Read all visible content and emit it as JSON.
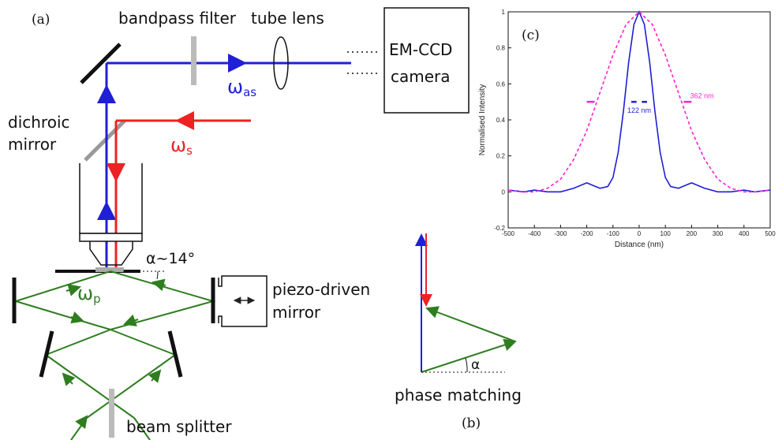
{
  "panels": {
    "a": "(a)",
    "b": "(b)",
    "c": "(c)"
  },
  "labels": {
    "bandpass_filter": "bandpass filter",
    "tube_lens": "tube lens",
    "camera_line1": "EM-CCD",
    "camera_line2": "camera",
    "omega_as": "ω",
    "omega_as_sub": "as",
    "omega_s": "ω",
    "omega_s_sub": "s",
    "omega_p": "ω",
    "omega_p_sub": "p",
    "dichroic_line1": "dichroic",
    "dichroic_line2": "mirror",
    "alpha_angle": "α~14°",
    "piezo_line1": "piezo-driven",
    "piezo_line2": "mirror",
    "beam_splitter": "beam splitter",
    "phase_matching": "phase matching",
    "alpha": "α"
  },
  "colors": {
    "anti_stokes": "#1f1fd6",
    "stokes": "#ee2222",
    "pump": "#2e7d1f",
    "wide_curve": "#ff22cc"
  },
  "chart_data": {
    "type": "line",
    "xlabel": "Distance (nm)",
    "ylabel": "Normalised Intensity",
    "xlim": [
      -500,
      500
    ],
    "ylim": [
      -0.2,
      1
    ],
    "xticks": [
      -500,
      -400,
      -300,
      -200,
      -100,
      0,
      100,
      200,
      300,
      400,
      500
    ],
    "yticks": [
      -0.2,
      0,
      0.2,
      0.4,
      0.6,
      0.8,
      1
    ],
    "series": [
      {
        "style": "solid",
        "color": "#1f1fd6",
        "x": [
          -500,
          -440,
          -400,
          -350,
          -300,
          -250,
          -200,
          -150,
          -120,
          -100,
          -80,
          -60,
          -40,
          -20,
          0,
          20,
          40,
          60,
          80,
          100,
          120,
          150,
          200,
          250,
          300,
          350,
          400,
          440,
          500
        ],
        "y": [
          0.01,
          0.0,
          0.01,
          0.0,
          0.0,
          0.02,
          0.05,
          0.02,
          0.03,
          0.08,
          0.22,
          0.45,
          0.72,
          0.93,
          1.0,
          0.93,
          0.72,
          0.45,
          0.22,
          0.08,
          0.03,
          0.02,
          0.05,
          0.02,
          0.0,
          0.0,
          0.01,
          0.0,
          0.01
        ]
      },
      {
        "style": "dashed",
        "color": "#ff22cc",
        "x": [
          -500,
          -450,
          -400,
          -350,
          -300,
          -250,
          -200,
          -150,
          -100,
          -50,
          0,
          50,
          100,
          150,
          200,
          250,
          300,
          350,
          400,
          450,
          500
        ],
        "y": [
          0.01,
          0.0,
          0.0,
          0.02,
          0.07,
          0.18,
          0.34,
          0.55,
          0.76,
          0.93,
          1.0,
          0.93,
          0.76,
          0.55,
          0.34,
          0.18,
          0.07,
          0.02,
          0.0,
          0.0,
          0.01
        ]
      }
    ],
    "annotations": [
      {
        "text": "122 nm",
        "color": "#1f1fd6",
        "x": 0,
        "y": 0.44
      },
      {
        "text": "362 nm",
        "color": "#ff22cc",
        "x": 240,
        "y": 0.52
      }
    ],
    "grid": false
  }
}
